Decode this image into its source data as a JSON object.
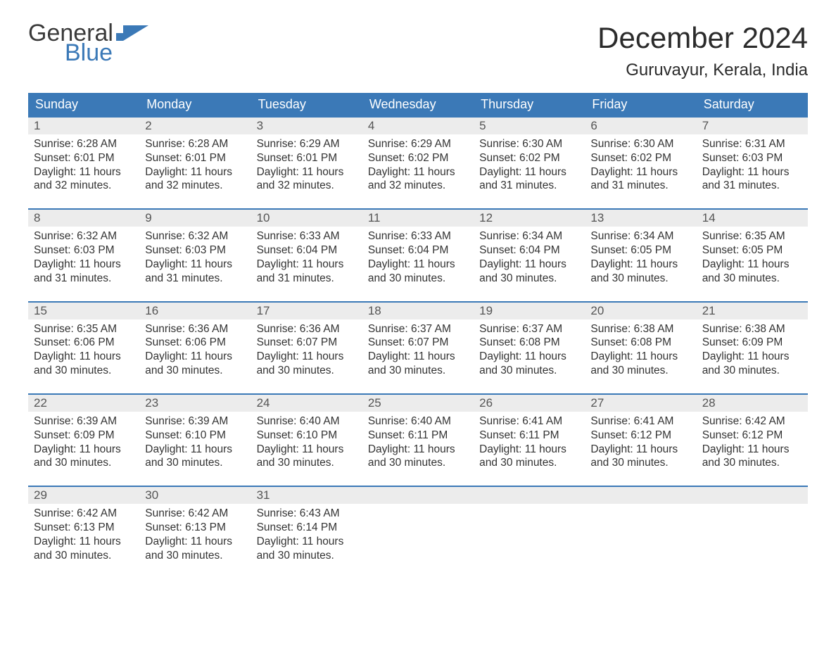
{
  "logo": {
    "word1": "General",
    "word2": "Blue",
    "flag_color": "#3b79b7",
    "text_gray": "#3a3a3a"
  },
  "title": "December 2024",
  "location": "Guruvayur, Kerala, India",
  "colors": {
    "header_bg": "#3b79b7",
    "header_text": "#ffffff",
    "daynum_bg": "#ececec",
    "daynum_text": "#555555",
    "body_text": "#333333",
    "row_border": "#3b79b7",
    "page_bg": "#ffffff"
  },
  "day_headers": [
    "Sunday",
    "Monday",
    "Tuesday",
    "Wednesday",
    "Thursday",
    "Friday",
    "Saturday"
  ],
  "weeks": [
    [
      {
        "n": "1",
        "sunrise": "Sunrise: 6:28 AM",
        "sunset": "Sunset: 6:01 PM",
        "d1": "Daylight: 11 hours",
        "d2": "and 32 minutes."
      },
      {
        "n": "2",
        "sunrise": "Sunrise: 6:28 AM",
        "sunset": "Sunset: 6:01 PM",
        "d1": "Daylight: 11 hours",
        "d2": "and 32 minutes."
      },
      {
        "n": "3",
        "sunrise": "Sunrise: 6:29 AM",
        "sunset": "Sunset: 6:01 PM",
        "d1": "Daylight: 11 hours",
        "d2": "and 32 minutes."
      },
      {
        "n": "4",
        "sunrise": "Sunrise: 6:29 AM",
        "sunset": "Sunset: 6:02 PM",
        "d1": "Daylight: 11 hours",
        "d2": "and 32 minutes."
      },
      {
        "n": "5",
        "sunrise": "Sunrise: 6:30 AM",
        "sunset": "Sunset: 6:02 PM",
        "d1": "Daylight: 11 hours",
        "d2": "and 31 minutes."
      },
      {
        "n": "6",
        "sunrise": "Sunrise: 6:30 AM",
        "sunset": "Sunset: 6:02 PM",
        "d1": "Daylight: 11 hours",
        "d2": "and 31 minutes."
      },
      {
        "n": "7",
        "sunrise": "Sunrise: 6:31 AM",
        "sunset": "Sunset: 6:03 PM",
        "d1": "Daylight: 11 hours",
        "d2": "and 31 minutes."
      }
    ],
    [
      {
        "n": "8",
        "sunrise": "Sunrise: 6:32 AM",
        "sunset": "Sunset: 6:03 PM",
        "d1": "Daylight: 11 hours",
        "d2": "and 31 minutes."
      },
      {
        "n": "9",
        "sunrise": "Sunrise: 6:32 AM",
        "sunset": "Sunset: 6:03 PM",
        "d1": "Daylight: 11 hours",
        "d2": "and 31 minutes."
      },
      {
        "n": "10",
        "sunrise": "Sunrise: 6:33 AM",
        "sunset": "Sunset: 6:04 PM",
        "d1": "Daylight: 11 hours",
        "d2": "and 31 minutes."
      },
      {
        "n": "11",
        "sunrise": "Sunrise: 6:33 AM",
        "sunset": "Sunset: 6:04 PM",
        "d1": "Daylight: 11 hours",
        "d2": "and 30 minutes."
      },
      {
        "n": "12",
        "sunrise": "Sunrise: 6:34 AM",
        "sunset": "Sunset: 6:04 PM",
        "d1": "Daylight: 11 hours",
        "d2": "and 30 minutes."
      },
      {
        "n": "13",
        "sunrise": "Sunrise: 6:34 AM",
        "sunset": "Sunset: 6:05 PM",
        "d1": "Daylight: 11 hours",
        "d2": "and 30 minutes."
      },
      {
        "n": "14",
        "sunrise": "Sunrise: 6:35 AM",
        "sunset": "Sunset: 6:05 PM",
        "d1": "Daylight: 11 hours",
        "d2": "and 30 minutes."
      }
    ],
    [
      {
        "n": "15",
        "sunrise": "Sunrise: 6:35 AM",
        "sunset": "Sunset: 6:06 PM",
        "d1": "Daylight: 11 hours",
        "d2": "and 30 minutes."
      },
      {
        "n": "16",
        "sunrise": "Sunrise: 6:36 AM",
        "sunset": "Sunset: 6:06 PM",
        "d1": "Daylight: 11 hours",
        "d2": "and 30 minutes."
      },
      {
        "n": "17",
        "sunrise": "Sunrise: 6:36 AM",
        "sunset": "Sunset: 6:07 PM",
        "d1": "Daylight: 11 hours",
        "d2": "and 30 minutes."
      },
      {
        "n": "18",
        "sunrise": "Sunrise: 6:37 AM",
        "sunset": "Sunset: 6:07 PM",
        "d1": "Daylight: 11 hours",
        "d2": "and 30 minutes."
      },
      {
        "n": "19",
        "sunrise": "Sunrise: 6:37 AM",
        "sunset": "Sunset: 6:08 PM",
        "d1": "Daylight: 11 hours",
        "d2": "and 30 minutes."
      },
      {
        "n": "20",
        "sunrise": "Sunrise: 6:38 AM",
        "sunset": "Sunset: 6:08 PM",
        "d1": "Daylight: 11 hours",
        "d2": "and 30 minutes."
      },
      {
        "n": "21",
        "sunrise": "Sunrise: 6:38 AM",
        "sunset": "Sunset: 6:09 PM",
        "d1": "Daylight: 11 hours",
        "d2": "and 30 minutes."
      }
    ],
    [
      {
        "n": "22",
        "sunrise": "Sunrise: 6:39 AM",
        "sunset": "Sunset: 6:09 PM",
        "d1": "Daylight: 11 hours",
        "d2": "and 30 minutes."
      },
      {
        "n": "23",
        "sunrise": "Sunrise: 6:39 AM",
        "sunset": "Sunset: 6:10 PM",
        "d1": "Daylight: 11 hours",
        "d2": "and 30 minutes."
      },
      {
        "n": "24",
        "sunrise": "Sunrise: 6:40 AM",
        "sunset": "Sunset: 6:10 PM",
        "d1": "Daylight: 11 hours",
        "d2": "and 30 minutes."
      },
      {
        "n": "25",
        "sunrise": "Sunrise: 6:40 AM",
        "sunset": "Sunset: 6:11 PM",
        "d1": "Daylight: 11 hours",
        "d2": "and 30 minutes."
      },
      {
        "n": "26",
        "sunrise": "Sunrise: 6:41 AM",
        "sunset": "Sunset: 6:11 PM",
        "d1": "Daylight: 11 hours",
        "d2": "and 30 minutes."
      },
      {
        "n": "27",
        "sunrise": "Sunrise: 6:41 AM",
        "sunset": "Sunset: 6:12 PM",
        "d1": "Daylight: 11 hours",
        "d2": "and 30 minutes."
      },
      {
        "n": "28",
        "sunrise": "Sunrise: 6:42 AM",
        "sunset": "Sunset: 6:12 PM",
        "d1": "Daylight: 11 hours",
        "d2": "and 30 minutes."
      }
    ],
    [
      {
        "n": "29",
        "sunrise": "Sunrise: 6:42 AM",
        "sunset": "Sunset: 6:13 PM",
        "d1": "Daylight: 11 hours",
        "d2": "and 30 minutes."
      },
      {
        "n": "30",
        "sunrise": "Sunrise: 6:42 AM",
        "sunset": "Sunset: 6:13 PM",
        "d1": "Daylight: 11 hours",
        "d2": "and 30 minutes."
      },
      {
        "n": "31",
        "sunrise": "Sunrise: 6:43 AM",
        "sunset": "Sunset: 6:14 PM",
        "d1": "Daylight: 11 hours",
        "d2": "and 30 minutes."
      },
      null,
      null,
      null,
      null
    ]
  ]
}
